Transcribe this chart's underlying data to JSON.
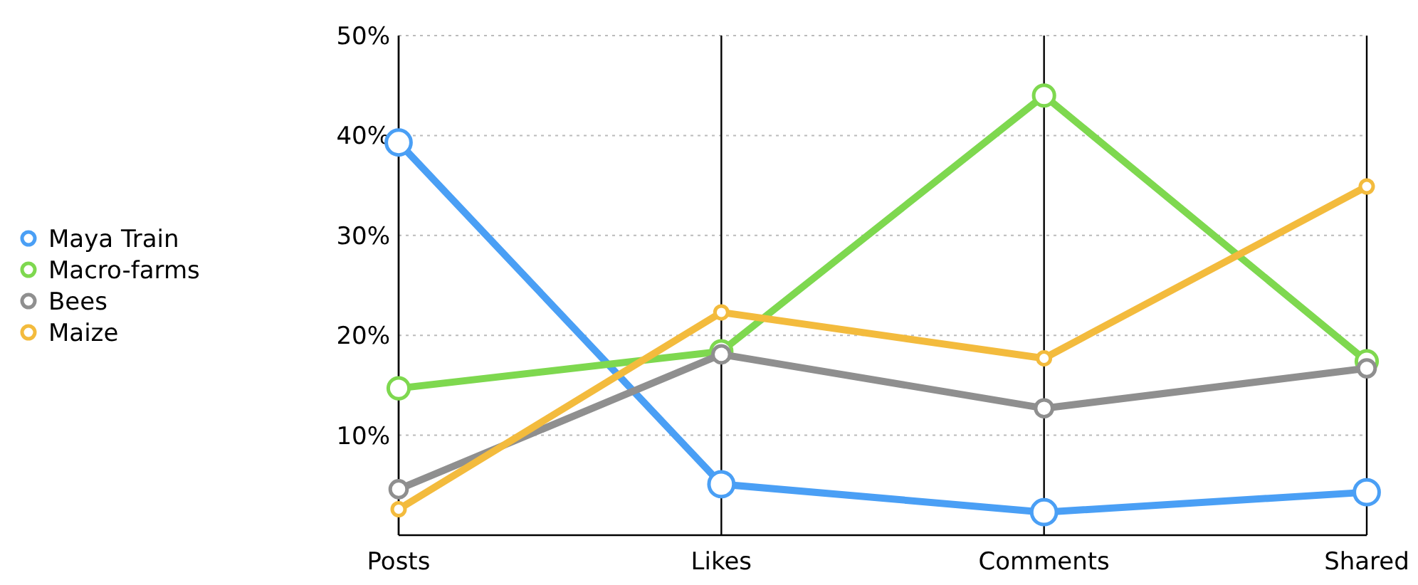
{
  "chart_data": {
    "type": "line",
    "categories": [
      "Posts",
      "Likes",
      "Comments",
      "Shared"
    ],
    "series": [
      {
        "name": "Maya Train",
        "color": "#4a9ff5",
        "values": [
          39.3,
          5.1,
          2.3,
          4.3
        ]
      },
      {
        "name": "Macro-farms",
        "color": "#7ed84f",
        "values": [
          14.7,
          18.4,
          44,
          17.4
        ]
      },
      {
        "name": "Bees",
        "color": "#8f8f8f",
        "values": [
          4.6,
          18.1,
          12.7,
          16.7
        ]
      },
      {
        "name": "Maize",
        "color": "#f3bb3d",
        "values": [
          2.6,
          22.3,
          17.7,
          34.9
        ]
      }
    ],
    "ylim": [
      0,
      50
    ],
    "yticks": [
      {
        "value": 10,
        "label": "10%"
      },
      {
        "value": 20,
        "label": "20%"
      },
      {
        "value": 30,
        "label": "30%"
      },
      {
        "value": 40,
        "label": "40%"
      },
      {
        "value": 50,
        "label": "50%"
      }
    ],
    "grid": true,
    "legend": "left",
    "marker": "circle",
    "line_style": "solid"
  }
}
